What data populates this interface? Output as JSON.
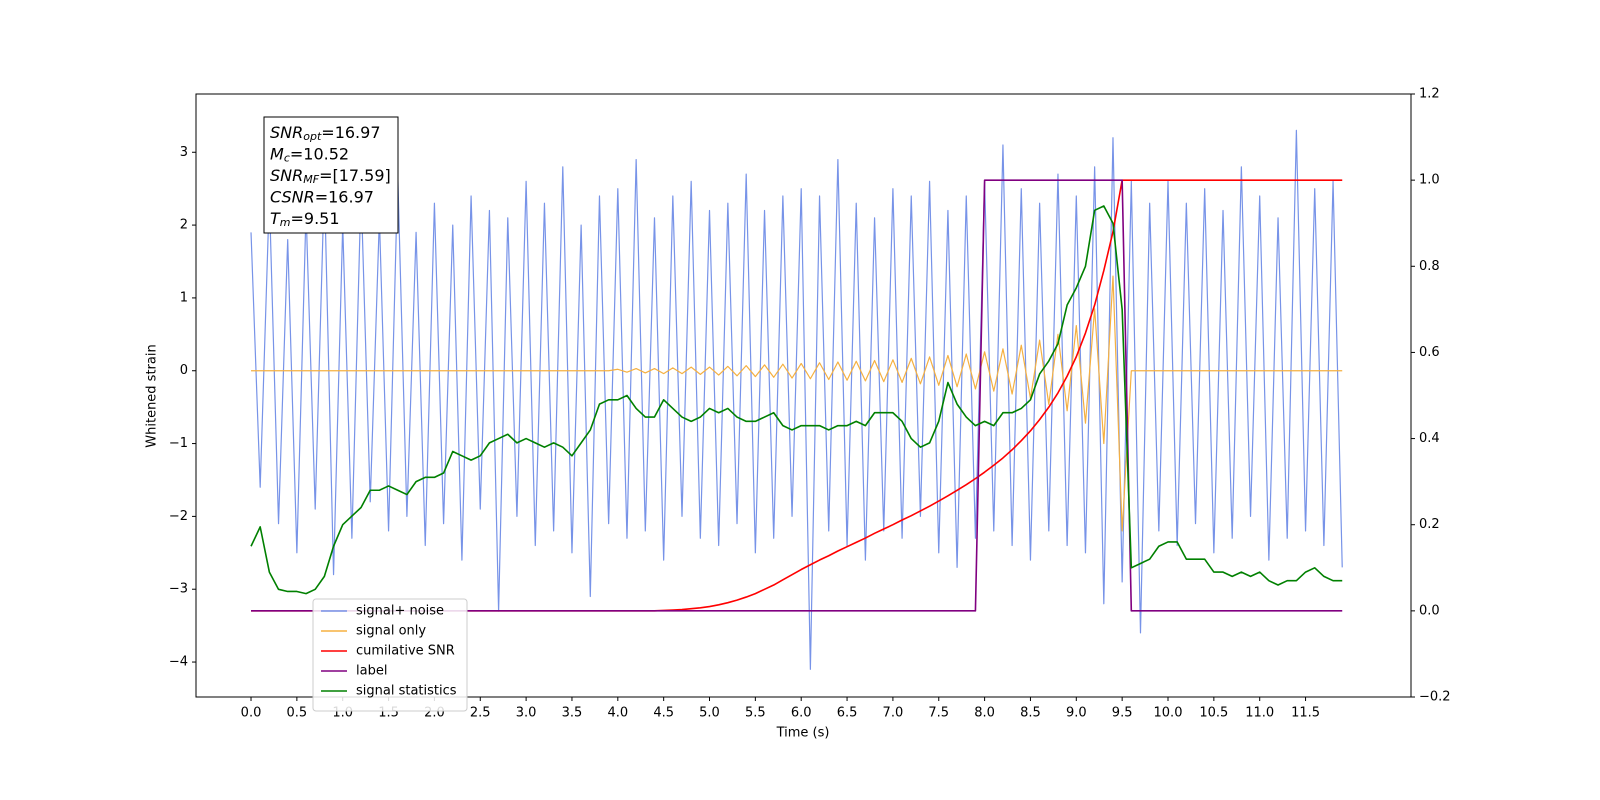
{
  "chart_data": {
    "type": "line",
    "xlabel": "Time (s)",
    "ylabel": "Whitened strain",
    "xlim": [
      -0.6,
      12.65
    ],
    "ylim": [
      -4.48,
      3.8
    ],
    "y2lim": [
      -0.2,
      1.2
    ],
    "xticks": [
      {
        "value": 0,
        "label": "0.0"
      },
      {
        "value": 0.5,
        "label": "0.5"
      },
      {
        "value": 1,
        "label": "1.0"
      },
      {
        "value": 1.5,
        "label": "1.5"
      },
      {
        "value": 2,
        "label": "2.0"
      },
      {
        "value": 2.5,
        "label": "2.5"
      },
      {
        "value": 3,
        "label": "3.0"
      },
      {
        "value": 3.5,
        "label": "3.5"
      },
      {
        "value": 4,
        "label": "4.0"
      },
      {
        "value": 4.5,
        "label": "4.5"
      },
      {
        "value": 5,
        "label": "5.0"
      },
      {
        "value": 5.5,
        "label": "5.5"
      },
      {
        "value": 6,
        "label": "6.0"
      },
      {
        "value": 6.5,
        "label": "6.5"
      },
      {
        "value": 7,
        "label": "7.0"
      },
      {
        "value": 7.5,
        "label": "7.5"
      },
      {
        "value": 8,
        "label": "8.0"
      },
      {
        "value": 8.5,
        "label": "8.5"
      },
      {
        "value": 9,
        "label": "9.0"
      },
      {
        "value": 9.5,
        "label": "9.5"
      },
      {
        "value": 10,
        "label": "10.0"
      },
      {
        "value": 10.5,
        "label": "10.5"
      },
      {
        "value": 11,
        "label": "11.0"
      },
      {
        "value": 11.5,
        "label": "11.5"
      }
    ],
    "yticks": [
      {
        "value": -4,
        "label": "−4"
      },
      {
        "value": -3,
        "label": "−3"
      },
      {
        "value": -2,
        "label": "−2"
      },
      {
        "value": -1,
        "label": "−1"
      },
      0,
      1,
      2,
      3
    ],
    "y2ticks": [
      {
        "value": -0.2,
        "label": "−0.2"
      },
      {
        "value": 0,
        "label": "0.0"
      },
      {
        "value": 0.2,
        "label": "0.2"
      },
      {
        "value": 0.4,
        "label": "0.4"
      },
      {
        "value": 0.6,
        "label": "0.6"
      },
      {
        "value": 0.8,
        "label": "0.8"
      },
      {
        "value": 1,
        "label": "1.0"
      },
      {
        "value": 1.2,
        "label": "1.2"
      }
    ],
    "legend": "lower left",
    "x": [
      0,
      0.1,
      0.2,
      0.3,
      0.4,
      0.5,
      0.6,
      0.7,
      0.8,
      0.9,
      1,
      1.1,
      1.2,
      1.3,
      1.4,
      1.5,
      1.6,
      1.7,
      1.8,
      1.9,
      2,
      2.1,
      2.2,
      2.3,
      2.4,
      2.5,
      2.6,
      2.7,
      2.8,
      2.9,
      3,
      3.1,
      3.2,
      3.3,
      3.4,
      3.5,
      3.6,
      3.7,
      3.8,
      3.9,
      4,
      4.1,
      4.2,
      4.3,
      4.4,
      4.5,
      4.6,
      4.7,
      4.8,
      4.9,
      5,
      5.1,
      5.2,
      5.3,
      5.4,
      5.5,
      5.6,
      5.7,
      5.8,
      5.9,
      6,
      6.1,
      6.2,
      6.3,
      6.4,
      6.5,
      6.6,
      6.7,
      6.8,
      6.9,
      7,
      7.1,
      7.2,
      7.3,
      7.4,
      7.5,
      7.6,
      7.7,
      7.8,
      7.9,
      8,
      8.1,
      8.2,
      8.3,
      8.4,
      8.5,
      8.6,
      8.7,
      8.8,
      8.9,
      9,
      9.1,
      9.2,
      9.3,
      9.4,
      9.5,
      9.6,
      9.7,
      9.8,
      9.9,
      10,
      10.1,
      10.2,
      10.3,
      10.4,
      10.5,
      10.6,
      10.7,
      10.8,
      10.9,
      11,
      11.1,
      11.2,
      11.3,
      11.4,
      11.5,
      11.6,
      11.7,
      11.8,
      11.9
    ],
    "series": [
      {
        "name": "signal+ noise",
        "color": "#7793e8",
        "values": [
          1.9,
          -1.6,
          2.4,
          -2.1,
          1.8,
          -2.5,
          2.2,
          -1.9,
          2.6,
          -2.8,
          2.0,
          -2.3,
          2.5,
          -1.8,
          2.1,
          -2.2,
          2.7,
          -2.0,
          1.9,
          -2.4,
          2.3,
          -2.1,
          2.0,
          -2.6,
          2.4,
          -1.9,
          2.2,
          -3.3,
          2.1,
          -2.0,
          2.6,
          -2.4,
          2.3,
          -2.2,
          2.8,
          -2.5,
          2.0,
          -3.1,
          2.4,
          -2.1,
          2.5,
          -2.3,
          2.9,
          -2.2,
          2.1,
          -2.6,
          2.4,
          -2.0,
          2.6,
          -2.3,
          2.2,
          -2.4,
          2.3,
          -2.1,
          2.7,
          -2.5,
          2.2,
          -2.3,
          2.4,
          -2.0,
          2.5,
          -4.1,
          2.4,
          -2.2,
          2.9,
          -2.4,
          2.3,
          -2.6,
          2.1,
          -2.2,
          2.5,
          -2.3,
          2.4,
          -2.0,
          2.6,
          -2.5,
          2.2,
          -2.7,
          2.4,
          -2.3,
          2.6,
          -2.2,
          3.1,
          -2.4,
          2.5,
          -2.6,
          2.3,
          -2.2,
          2.7,
          -2.4,
          2.4,
          -2.5,
          2.8,
          -3.2,
          3.2,
          -2.9,
          2.6,
          -3.6,
          2.3,
          -2.2,
          2.6,
          -2.4,
          2.3,
          -2.1,
          2.5,
          -2.5,
          2.2,
          -2.3,
          2.8,
          -2.0,
          2.4,
          -2.6,
          2.1,
          -2.3,
          3.3,
          -2.2,
          2.5,
          -2.4,
          2.6,
          -2.7
        ]
      },
      {
        "name": "signal only",
        "color": "#f5b041",
        "values": [
          0,
          0,
          0,
          0,
          0,
          0,
          0,
          0,
          0,
          0,
          0,
          0,
          0,
          0,
          0,
          0,
          0,
          0,
          0,
          0,
          0,
          0,
          0,
          0,
          0,
          0,
          0,
          0,
          0,
          0,
          0,
          0,
          0,
          0,
          0,
          0,
          0,
          0,
          0,
          0,
          0.02,
          -0.02,
          0.03,
          -0.03,
          0.03,
          -0.04,
          0.04,
          -0.04,
          0.05,
          -0.05,
          0.05,
          -0.06,
          0.06,
          -0.07,
          0.07,
          -0.08,
          0.08,
          -0.09,
          0.09,
          -0.1,
          0.1,
          -0.11,
          0.11,
          -0.12,
          0.12,
          -0.13,
          0.13,
          -0.14,
          0.14,
          -0.15,
          0.15,
          -0.16,
          0.17,
          -0.18,
          0.19,
          -0.2,
          0.21,
          -0.22,
          0.23,
          -0.25,
          0.26,
          -0.28,
          0.3,
          -0.32,
          0.35,
          -0.38,
          0.42,
          -0.46,
          0.5,
          -0.55,
          0.62,
          -0.72,
          0.85,
          -1.0,
          1.3,
          -2.2,
          0,
          0,
          0,
          0,
          0,
          0,
          0,
          0,
          0,
          0,
          0,
          0,
          0,
          0,
          0,
          0,
          0,
          0,
          0,
          0,
          0,
          0,
          0,
          0
        ]
      },
      {
        "name": "cumilative SNR",
        "color": "#ff0000",
        "axis": "y2",
        "values": [
          0,
          0,
          0,
          0,
          0,
          0,
          0,
          0,
          0,
          0,
          0,
          0,
          0,
          0,
          0,
          0,
          0,
          0,
          0,
          0,
          0,
          0,
          0,
          0,
          0,
          0,
          0,
          0,
          0,
          0,
          0,
          0,
          0,
          0,
          0,
          0,
          0,
          0,
          0,
          0,
          0,
          0,
          0,
          0,
          0,
          0.001,
          0.002,
          0.003,
          0.005,
          0.007,
          0.01,
          0.014,
          0.019,
          0.025,
          0.032,
          0.04,
          0.05,
          0.06,
          0.072,
          0.084,
          0.096,
          0.107,
          0.118,
          0.128,
          0.139,
          0.149,
          0.159,
          0.169,
          0.18,
          0.19,
          0.2,
          0.211,
          0.221,
          0.232,
          0.243,
          0.255,
          0.267,
          0.28,
          0.293,
          0.307,
          0.322,
          0.338,
          0.355,
          0.374,
          0.395,
          0.418,
          0.444,
          0.473,
          0.506,
          0.545,
          0.59,
          0.645,
          0.71,
          0.79,
          0.88,
          1,
          1,
          1,
          1,
          1,
          1,
          1,
          1,
          1,
          1,
          1,
          1,
          1,
          1,
          1,
          1,
          1,
          1,
          1,
          1,
          1,
          1,
          1,
          1,
          1
        ]
      },
      {
        "name": "label",
        "color": "#800080",
        "axis": "y2",
        "values": [
          0,
          0,
          0,
          0,
          0,
          0,
          0,
          0,
          0,
          0,
          0,
          0,
          0,
          0,
          0,
          0,
          0,
          0,
          0,
          0,
          0,
          0,
          0,
          0,
          0,
          0,
          0,
          0,
          0,
          0,
          0,
          0,
          0,
          0,
          0,
          0,
          0,
          0,
          0,
          0,
          0,
          0,
          0,
          0,
          0,
          0,
          0,
          0,
          0,
          0,
          0,
          0,
          0,
          0,
          0,
          0,
          0,
          0,
          0,
          0,
          0,
          0,
          0,
          0,
          0,
          0,
          0,
          0,
          0,
          0,
          0,
          0,
          0,
          0,
          0,
          0,
          0,
          0,
          0,
          0,
          1,
          1,
          1,
          1,
          1,
          1,
          1,
          1,
          1,
          1,
          1,
          1,
          1,
          1,
          1,
          1,
          0,
          0,
          0,
          0,
          0,
          0,
          0,
          0,
          0,
          0,
          0,
          0,
          0,
          0,
          0,
          0,
          0,
          0,
          0,
          0,
          0,
          0,
          0,
          0
        ]
      },
      {
        "name": "signal statistics",
        "color": "#008000",
        "axis": "y2",
        "values": [
          0.15,
          0.195,
          0.09,
          0.05,
          0.045,
          0.045,
          0.04,
          0.05,
          0.08,
          0.15,
          0.2,
          0.22,
          0.24,
          0.28,
          0.28,
          0.29,
          0.28,
          0.27,
          0.3,
          0.31,
          0.31,
          0.32,
          0.37,
          0.36,
          0.35,
          0.36,
          0.39,
          0.4,
          0.41,
          0.39,
          0.4,
          0.39,
          0.38,
          0.39,
          0.38,
          0.36,
          0.39,
          0.42,
          0.48,
          0.49,
          0.49,
          0.5,
          0.47,
          0.45,
          0.45,
          0.49,
          0.47,
          0.45,
          0.44,
          0.45,
          0.47,
          0.46,
          0.47,
          0.45,
          0.44,
          0.44,
          0.45,
          0.46,
          0.43,
          0.42,
          0.43,
          0.43,
          0.43,
          0.42,
          0.43,
          0.43,
          0.44,
          0.43,
          0.46,
          0.46,
          0.46,
          0.44,
          0.4,
          0.38,
          0.39,
          0.44,
          0.53,
          0.48,
          0.45,
          0.43,
          0.44,
          0.43,
          0.46,
          0.46,
          0.47,
          0.49,
          0.55,
          0.58,
          0.62,
          0.71,
          0.75,
          0.8,
          0.93,
          0.94,
          0.9,
          0.7,
          0.1,
          0.11,
          0.12,
          0.15,
          0.16,
          0.16,
          0.12,
          0.12,
          0.12,
          0.09,
          0.09,
          0.08,
          0.09,
          0.08,
          0.09,
          0.07,
          0.06,
          0.07,
          0.07,
          0.09,
          0.1,
          0.08,
          0.07,
          0.07
        ]
      }
    ],
    "annotation": [
      {
        "text": "SNR",
        "sub": "opt",
        "value": "=16.97"
      },
      {
        "text": "M",
        "sub": "c",
        "value": "=10.52"
      },
      {
        "text": "SNR",
        "sub": "MF",
        "value": "=[17.59]"
      },
      {
        "text": "CSNR",
        "value": "=16.97"
      },
      {
        "text": "T",
        "sub": "m",
        "value": "=9.51"
      }
    ]
  }
}
